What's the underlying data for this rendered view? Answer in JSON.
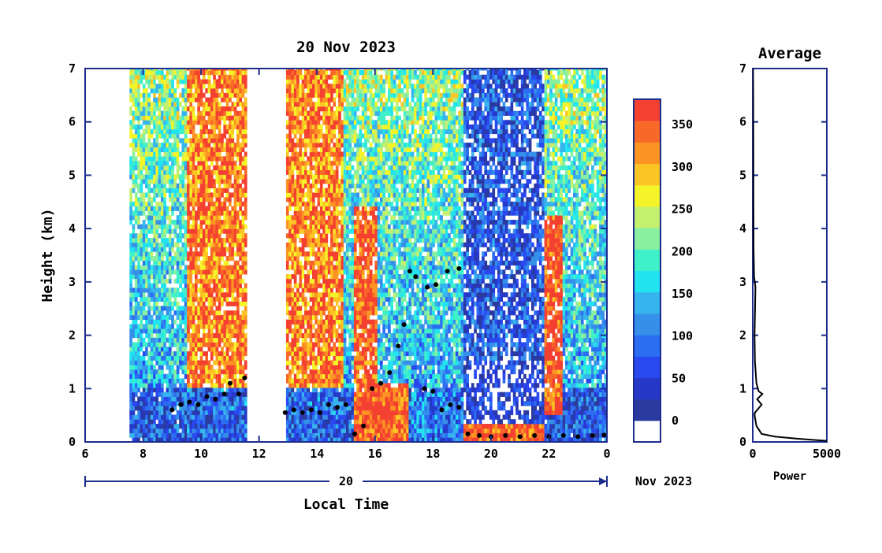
{
  "chart_data": [
    {
      "type": "heatmap",
      "title": "20 Nov 2023",
      "xlabel": "Local Time",
      "ylabel": "Height (km)",
      "x_ticks": [
        "6",
        "8",
        "10",
        "12",
        "14",
        "16",
        "18",
        "20",
        "22",
        "0"
      ],
      "y_ticks": [
        "0",
        "1",
        "2",
        "3",
        "4",
        "5",
        "6",
        "7"
      ],
      "xlim": [
        6,
        24
      ],
      "ylim": [
        0,
        7
      ],
      "date_bar": {
        "day": "20",
        "month_year": "Nov 2023"
      },
      "data_gaps": [
        [
          6,
          7.5
        ],
        [
          11.55,
          12.85
        ]
      ],
      "colorbar": {
        "ticks": [
          "0",
          "50",
          "100",
          "150",
          "200",
          "250",
          "300",
          "350"
        ],
        "range": [
          -25,
          380
        ],
        "colors": [
          "#ffffff",
          "#2b3a9e",
          "#2638c8",
          "#2a48f0",
          "#2c6ef2",
          "#3690ea",
          "#36b4ee",
          "#22e4f0",
          "#40f0c8",
          "#88f0a0",
          "#c4f070",
          "#f4f428",
          "#fcc424",
          "#fc9424",
          "#f86828",
          "#f44030"
        ]
      },
      "cloud_base_km": [
        [
          9.0,
          0.6
        ],
        [
          9.3,
          0.7
        ],
        [
          9.6,
          0.75
        ],
        [
          9.9,
          0.7
        ],
        [
          10.2,
          0.85
        ],
        [
          10.5,
          0.8
        ],
        [
          10.8,
          0.9
        ],
        [
          11.0,
          1.1
        ],
        [
          11.3,
          0.9
        ],
        [
          11.5,
          1.2
        ],
        [
          12.9,
          0.55
        ],
        [
          13.2,
          0.6
        ],
        [
          13.5,
          0.55
        ],
        [
          13.8,
          0.6
        ],
        [
          14.1,
          0.55
        ],
        [
          14.4,
          0.7
        ],
        [
          14.7,
          0.65
        ],
        [
          15.0,
          0.7
        ],
        [
          15.3,
          0.15
        ],
        [
          15.6,
          0.3
        ],
        [
          15.9,
          1.0
        ],
        [
          16.2,
          1.1
        ],
        [
          16.5,
          1.3
        ],
        [
          16.8,
          1.8
        ],
        [
          17.0,
          2.2
        ],
        [
          17.2,
          3.2
        ],
        [
          17.4,
          3.1
        ],
        [
          17.7,
          1.0
        ],
        [
          18.0,
          0.95
        ],
        [
          17.8,
          2.9
        ],
        [
          18.1,
          2.95
        ],
        [
          18.3,
          0.6
        ],
        [
          18.6,
          0.7
        ],
        [
          18.9,
          0.65
        ],
        [
          18.5,
          3.2
        ],
        [
          18.9,
          3.25
        ],
        [
          19.2,
          0.15
        ],
        [
          19.6,
          0.12
        ],
        [
          20.0,
          0.1
        ],
        [
          20.5,
          0.12
        ],
        [
          21.0,
          0.1
        ],
        [
          21.5,
          0.12
        ],
        [
          22.0,
          0.1
        ],
        [
          22.5,
          0.12
        ],
        [
          23.0,
          0.1
        ],
        [
          23.5,
          0.12
        ],
        [
          23.9,
          0.13
        ]
      ]
    },
    {
      "type": "line",
      "title": "Average",
      "xlabel": "Power",
      "ylabel": "",
      "x_ticks": [
        "0",
        "5000"
      ],
      "y_ticks": [
        "0",
        "1",
        "2",
        "3",
        "4",
        "5",
        "6",
        "7"
      ],
      "xlim": [
        0,
        5000
      ],
      "ylim": [
        0,
        7
      ],
      "x": [
        5000,
        3000,
        1500,
        600,
        250,
        120,
        150,
        600,
        300,
        650,
        400,
        250,
        150,
        120,
        180,
        90,
        80,
        60,
        50,
        40,
        30,
        20
      ],
      "y": [
        0.02,
        0.06,
        0.1,
        0.15,
        0.3,
        0.5,
        0.55,
        0.7,
        0.8,
        0.9,
        0.95,
        1.1,
        1.5,
        2.0,
        2.9,
        3.1,
        3.3,
        3.6,
        4.5,
        5.5,
        6.5,
        7.0
      ]
    }
  ]
}
